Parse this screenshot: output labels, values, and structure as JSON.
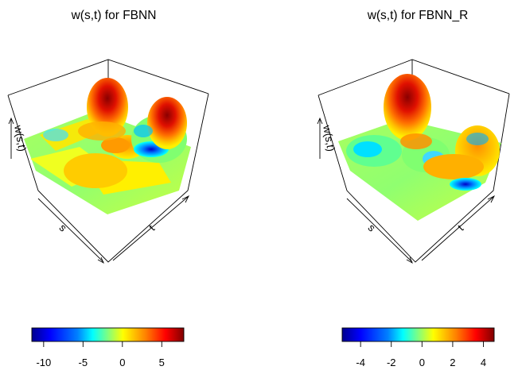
{
  "chart_data": [
    {
      "type": "surface3d",
      "title": "w(s,t) for FBNN",
      "xlabel": "s",
      "ylabel": "t",
      "zlabel": "w(s,t)",
      "colorbar": {
        "min": -11.5,
        "max": 7.8,
        "ticks": [
          -10,
          -5,
          0,
          5
        ],
        "tick_labels": [
          "-10",
          "-5",
          "0",
          "5"
        ]
      },
      "colormap": [
        "#00008f",
        "#0000ff",
        "#0080ff",
        "#00ffff",
        "#80ff80",
        "#ffff00",
        "#ff8000",
        "#ff0000",
        "#800000"
      ]
    },
    {
      "type": "surface3d",
      "title": "w(s,t) for FBNN_R",
      "xlabel": "s",
      "ylabel": "t",
      "zlabel": "w(s,t)",
      "colorbar": {
        "min": -5.2,
        "max": 4.7,
        "ticks": [
          -4,
          -2,
          0,
          2,
          4
        ],
        "tick_labels": [
          "-4",
          "-2",
          "0",
          "2",
          "4"
        ]
      },
      "colormap": [
        "#00008f",
        "#0000ff",
        "#0080ff",
        "#00ffff",
        "#80ff80",
        "#ffff00",
        "#ff8000",
        "#ff0000",
        "#800000"
      ]
    }
  ]
}
